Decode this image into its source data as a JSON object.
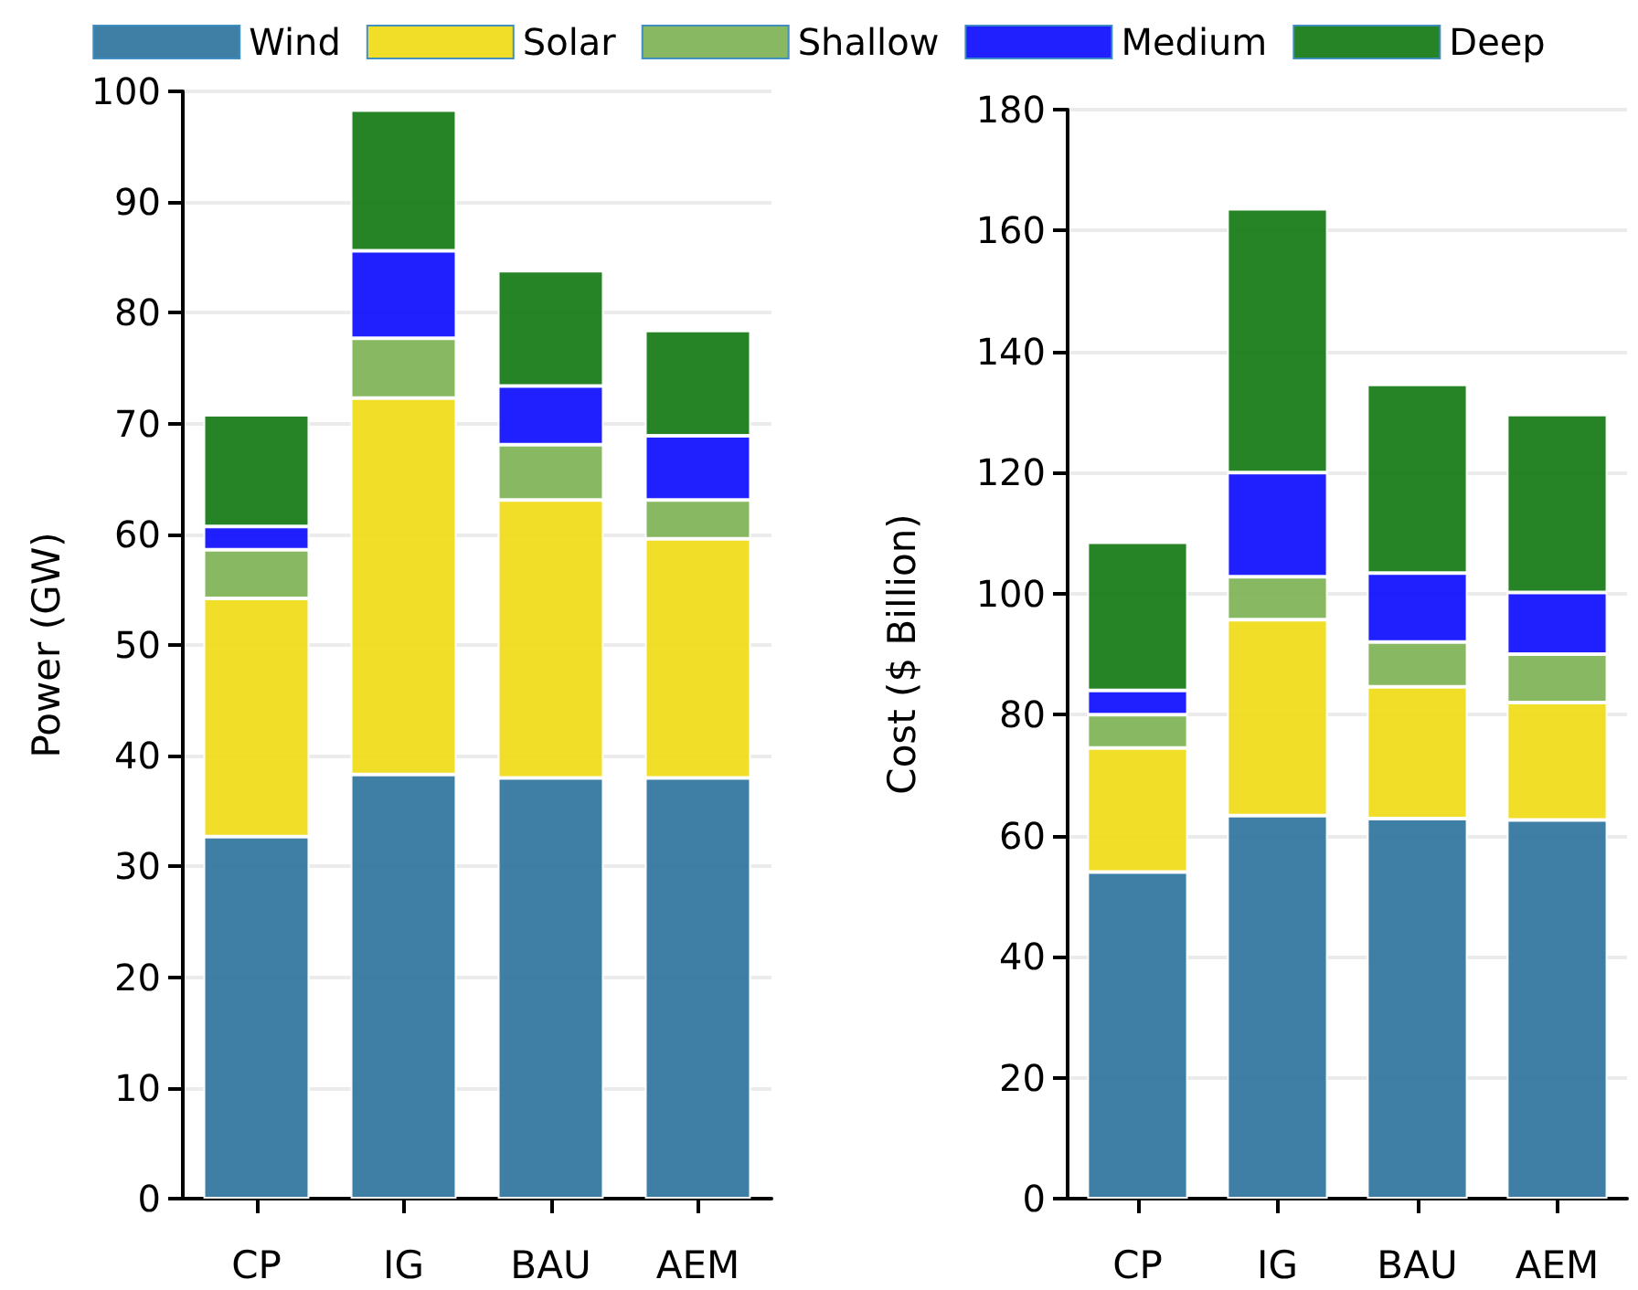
{
  "chart_data": [
    {
      "type": "bar",
      "stacked": true,
      "ylabel": "Power (GW)",
      "categories": [
        "CP",
        "IG",
        "BAU",
        "AEM"
      ],
      "ylim": [
        0,
        100
      ],
      "yticks": [
        0,
        10,
        20,
        30,
        40,
        50,
        60,
        70,
        80,
        90,
        100
      ],
      "grid": "y",
      "legend": "top",
      "series": [
        {
          "name": "Wind",
          "color": "#3578a0",
          "values": [
            32.7,
            38.3,
            38.0,
            38.0
          ]
        },
        {
          "name": "Solar",
          "color": "#f0dc1e",
          "values": [
            21.5,
            34.0,
            25.1,
            21.6
          ]
        },
        {
          "name": "Shallow",
          "color": "#82b45a",
          "values": [
            4.4,
            5.4,
            5.0,
            3.5
          ]
        },
        {
          "name": "Medium",
          "color": "#1414ff",
          "values": [
            2.1,
            7.9,
            5.3,
            5.8
          ]
        },
        {
          "name": "Deep",
          "color": "#1a7d1a",
          "values": [
            10.1,
            12.7,
            10.4,
            9.5
          ]
        }
      ]
    },
    {
      "type": "bar",
      "stacked": true,
      "ylabel": "Cost ($ Billion)",
      "categories": [
        "CP",
        "IG",
        "BAU",
        "AEM"
      ],
      "ylim": [
        0,
        180
      ],
      "yticks": [
        0,
        20,
        40,
        60,
        80,
        100,
        120,
        140,
        160,
        180
      ],
      "grid": "y",
      "legend": false,
      "series": [
        {
          "color": "#3578a0",
          "values": [
            54,
            63.3,
            62.8,
            62.6
          ]
        },
        {
          "color": "#f0dc1e",
          "values": [
            20.5,
            32.4,
            21.8,
            19.4
          ]
        },
        {
          "color": "#82b45a",
          "values": [
            5.5,
            7.1,
            7.4,
            8
          ]
        },
        {
          "color": "#1414ff",
          "values": [
            4,
            17.2,
            11.4,
            10.2
          ]
        },
        {
          "color": "#1a7d1a",
          "values": [
            24.5,
            43.6,
            31.2,
            29.4
          ]
        }
      ]
    }
  ]
}
